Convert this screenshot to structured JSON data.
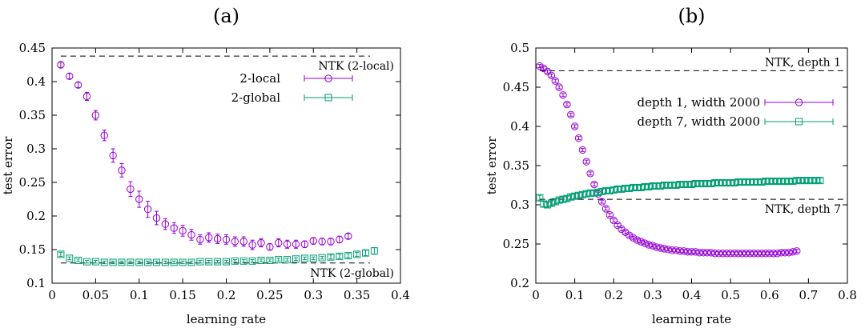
{
  "chart_data": [
    {
      "type": "scatter",
      "title": "(a)",
      "xlabel": "learning rate",
      "ylabel": "test error",
      "xlim": [
        0,
        0.4
      ],
      "ylim": [
        0.1,
        0.45
      ],
      "xticks": [
        0,
        0.05,
        0.1,
        0.15,
        0.2,
        0.25,
        0.3,
        0.35,
        0.4
      ],
      "xtick_labels": [
        "0",
        "0.05",
        "0.1",
        "0.15",
        "0.2",
        "0.25",
        "0.3",
        "0.35",
        "0.4"
      ],
      "yticks": [
        0.1,
        0.15,
        0.2,
        0.25,
        0.3,
        0.35,
        0.4,
        0.45
      ],
      "ytick_labels": [
        "0.1",
        "0.15",
        "0.2",
        "0.25",
        "0.3",
        "0.35",
        "0.4",
        "0.45"
      ],
      "legend_position": "right",
      "grid": false,
      "series": [
        {
          "name": "2-local",
          "marker": "circle",
          "color": "#9400d3",
          "x": [
            0.01,
            0.02,
            0.03,
            0.04,
            0.05,
            0.06,
            0.07,
            0.08,
            0.09,
            0.1,
            0.11,
            0.12,
            0.13,
            0.14,
            0.15,
            0.16,
            0.17,
            0.18,
            0.19,
            0.2,
            0.21,
            0.22,
            0.23,
            0.24,
            0.25,
            0.26,
            0.27,
            0.28,
            0.29,
            0.3,
            0.31,
            0.32,
            0.33,
            0.34
          ],
          "y": [
            0.425,
            0.408,
            0.395,
            0.378,
            0.35,
            0.32,
            0.29,
            0.268,
            0.24,
            0.225,
            0.21,
            0.197,
            0.188,
            0.182,
            0.178,
            0.172,
            0.165,
            0.168,
            0.166,
            0.165,
            0.162,
            0.162,
            0.157,
            0.16,
            0.154,
            0.16,
            0.158,
            0.158,
            0.158,
            0.163,
            0.162,
            0.162,
            0.165,
            0.17
          ],
          "err": [
            0.004,
            0.004,
            0.004,
            0.006,
            0.007,
            0.008,
            0.01,
            0.01,
            0.011,
            0.012,
            0.012,
            0.01,
            0.008,
            0.008,
            0.008,
            0.008,
            0.007,
            0.007,
            0.007,
            0.007,
            0.007,
            0.007,
            0.007,
            0.006,
            0.005,
            0.006,
            0.006,
            0.006,
            0.005,
            0.005,
            0.005,
            0.005,
            0.005,
            0.004
          ]
        },
        {
          "name": "2-global",
          "marker": "square",
          "color": "#009e73",
          "x": [
            0.01,
            0.02,
            0.03,
            0.04,
            0.05,
            0.06,
            0.07,
            0.08,
            0.09,
            0.1,
            0.11,
            0.12,
            0.13,
            0.14,
            0.15,
            0.16,
            0.17,
            0.18,
            0.19,
            0.2,
            0.21,
            0.22,
            0.23,
            0.24,
            0.25,
            0.26,
            0.27,
            0.28,
            0.29,
            0.3,
            0.31,
            0.32,
            0.33,
            0.34,
            0.35,
            0.36,
            0.37
          ],
          "y": [
            0.143,
            0.137,
            0.134,
            0.132,
            0.132,
            0.131,
            0.131,
            0.131,
            0.131,
            0.131,
            0.131,
            0.131,
            0.131,
            0.131,
            0.131,
            0.131,
            0.132,
            0.132,
            0.132,
            0.132,
            0.133,
            0.133,
            0.133,
            0.134,
            0.134,
            0.135,
            0.135,
            0.136,
            0.137,
            0.137,
            0.138,
            0.139,
            0.14,
            0.141,
            0.143,
            0.145,
            0.148
          ],
          "err": [
            0.003,
            0.002,
            0.002,
            0.002,
            0.002,
            0.002,
            0.002,
            0.002,
            0.002,
            0.002,
            0.002,
            0.002,
            0.002,
            0.002,
            0.002,
            0.002,
            0.002,
            0.002,
            0.002,
            0.002,
            0.002,
            0.002,
            0.002,
            0.002,
            0.002,
            0.002,
            0.002,
            0.002,
            0.002,
            0.002,
            0.002,
            0.003,
            0.003,
            0.003,
            0.003,
            0.004,
            0.005
          ]
        }
      ],
      "reference_lines": [
        {
          "label": "NTK (2-local)",
          "y": 0.438,
          "label_position": "below-right"
        },
        {
          "label": "NTK (2-global)",
          "y": 0.13,
          "label_position": "below-right"
        }
      ]
    },
    {
      "type": "scatter",
      "title": "(b)",
      "xlabel": "learning rate",
      "ylabel": "test error",
      "xlim": [
        0,
        0.8
      ],
      "ylim": [
        0.2,
        0.5
      ],
      "xticks": [
        0,
        0.1,
        0.2,
        0.3,
        0.4,
        0.5,
        0.6,
        0.7,
        0.8
      ],
      "xtick_labels": [
        "0",
        "0.1",
        "0.2",
        "0.3",
        "0.4",
        "0.5",
        "0.6",
        "0.7",
        "0.8"
      ],
      "yticks": [
        0.2,
        0.25,
        0.3,
        0.35,
        0.4,
        0.45,
        0.5
      ],
      "ytick_labels": [
        "0.2",
        "0.25",
        "0.3",
        "0.35",
        "0.4",
        "0.45",
        "0.5"
      ],
      "legend_position": "right",
      "grid": false,
      "series": [
        {
          "name": "depth 1, width 2000",
          "marker": "circle",
          "color": "#9400d3",
          "x": [
            0.01,
            0.02,
            0.03,
            0.04,
            0.05,
            0.06,
            0.07,
            0.08,
            0.09,
            0.1,
            0.11,
            0.12,
            0.13,
            0.14,
            0.15,
            0.16,
            0.17,
            0.18,
            0.19,
            0.2,
            0.21,
            0.22,
            0.23,
            0.24,
            0.25,
            0.26,
            0.27,
            0.28,
            0.29,
            0.3,
            0.31,
            0.32,
            0.33,
            0.34,
            0.35,
            0.36,
            0.37,
            0.38,
            0.39,
            0.4,
            0.41,
            0.42,
            0.43,
            0.44,
            0.45,
            0.46,
            0.47,
            0.48,
            0.49,
            0.5,
            0.51,
            0.52,
            0.53,
            0.54,
            0.55,
            0.56,
            0.57,
            0.58,
            0.59,
            0.6,
            0.61,
            0.62,
            0.63,
            0.64,
            0.65,
            0.66,
            0.67
          ],
          "y": [
            0.477,
            0.474,
            0.47,
            0.465,
            0.458,
            0.45,
            0.44,
            0.428,
            0.415,
            0.4,
            0.385,
            0.37,
            0.355,
            0.34,
            0.326,
            0.314,
            0.304,
            0.295,
            0.287,
            0.28,
            0.274,
            0.269,
            0.265,
            0.261,
            0.258,
            0.255,
            0.253,
            0.251,
            0.249,
            0.248,
            0.246,
            0.245,
            0.244,
            0.243,
            0.242,
            0.242,
            0.241,
            0.241,
            0.24,
            0.24,
            0.24,
            0.239,
            0.239,
            0.239,
            0.239,
            0.238,
            0.238,
            0.238,
            0.238,
            0.238,
            0.238,
            0.238,
            0.238,
            0.238,
            0.238,
            0.238,
            0.238,
            0.238,
            0.238,
            0.238,
            0.238,
            0.238,
            0.239,
            0.239,
            0.239,
            0.24,
            0.241
          ],
          "err": [
            0.002,
            0.002,
            0.002,
            0.002,
            0.002,
            0.002,
            0.002,
            0.002,
            0.002,
            0.002,
            0.002,
            0.002,
            0.002,
            0.002,
            0.002,
            0.002,
            0.002,
            0.002,
            0.002,
            0.002,
            0.002,
            0.002,
            0.002,
            0.002,
            0.002,
            0.002,
            0.002,
            0.002,
            0.002,
            0.002,
            0.002,
            0.002,
            0.002,
            0.002,
            0.002,
            0.002,
            0.002,
            0.002,
            0.002,
            0.002,
            0.002,
            0.002,
            0.002,
            0.002,
            0.002,
            0.002,
            0.002,
            0.002,
            0.002,
            0.002,
            0.002,
            0.002,
            0.002,
            0.002,
            0.002,
            0.002,
            0.002,
            0.002,
            0.002,
            0.002,
            0.002,
            0.002,
            0.002,
            0.002,
            0.002,
            0.002,
            0.002
          ]
        },
        {
          "name": "depth 7, width 2000",
          "marker": "square",
          "color": "#009e73",
          "x": [
            0.01,
            0.02,
            0.03,
            0.04,
            0.05,
            0.06,
            0.07,
            0.08,
            0.09,
            0.1,
            0.11,
            0.12,
            0.13,
            0.14,
            0.15,
            0.16,
            0.17,
            0.18,
            0.19,
            0.2,
            0.21,
            0.22,
            0.23,
            0.24,
            0.25,
            0.26,
            0.27,
            0.28,
            0.29,
            0.3,
            0.31,
            0.32,
            0.33,
            0.34,
            0.35,
            0.36,
            0.37,
            0.38,
            0.39,
            0.4,
            0.41,
            0.42,
            0.43,
            0.44,
            0.45,
            0.46,
            0.47,
            0.48,
            0.49,
            0.5,
            0.51,
            0.52,
            0.53,
            0.54,
            0.55,
            0.56,
            0.57,
            0.58,
            0.59,
            0.6,
            0.61,
            0.62,
            0.63,
            0.64,
            0.65,
            0.66,
            0.67,
            0.68,
            0.69,
            0.7,
            0.71,
            0.72,
            0.73
          ],
          "y": [
            0.309,
            0.301,
            0.3,
            0.302,
            0.304,
            0.306,
            0.307,
            0.308,
            0.31,
            0.311,
            0.312,
            0.313,
            0.314,
            0.315,
            0.315,
            0.316,
            0.317,
            0.318,
            0.318,
            0.319,
            0.32,
            0.32,
            0.321,
            0.321,
            0.322,
            0.322,
            0.322,
            0.323,
            0.323,
            0.324,
            0.324,
            0.324,
            0.325,
            0.325,
            0.325,
            0.325,
            0.326,
            0.326,
            0.326,
            0.326,
            0.327,
            0.327,
            0.327,
            0.327,
            0.327,
            0.328,
            0.328,
            0.328,
            0.328,
            0.328,
            0.328,
            0.329,
            0.329,
            0.329,
            0.329,
            0.329,
            0.329,
            0.329,
            0.33,
            0.33,
            0.33,
            0.33,
            0.33,
            0.33,
            0.33,
            0.33,
            0.331,
            0.331,
            0.331,
            0.331,
            0.331,
            0.331,
            0.331
          ],
          "err": [
            0.003,
            0.003,
            0.003,
            0.003,
            0.003,
            0.003,
            0.003,
            0.003,
            0.003,
            0.003,
            0.003,
            0.003,
            0.003,
            0.003,
            0.003,
            0.003,
            0.003,
            0.003,
            0.003,
            0.003,
            0.003,
            0.003,
            0.003,
            0.003,
            0.003,
            0.003,
            0.003,
            0.003,
            0.003,
            0.003,
            0.003,
            0.003,
            0.003,
            0.003,
            0.003,
            0.003,
            0.003,
            0.003,
            0.003,
            0.003,
            0.003,
            0.003,
            0.003,
            0.003,
            0.003,
            0.003,
            0.003,
            0.003,
            0.003,
            0.003,
            0.003,
            0.003,
            0.003,
            0.003,
            0.003,
            0.003,
            0.003,
            0.003,
            0.003,
            0.003,
            0.003,
            0.003,
            0.003,
            0.003,
            0.003,
            0.003,
            0.003,
            0.003,
            0.003,
            0.003,
            0.003,
            0.003,
            0.003
          ]
        }
      ],
      "reference_lines": [
        {
          "label": "NTK, depth 1",
          "y": 0.471,
          "label_position": "above-right"
        },
        {
          "label": "NTK, depth 7",
          "y": 0.307,
          "label_position": "below-right"
        }
      ]
    }
  ]
}
